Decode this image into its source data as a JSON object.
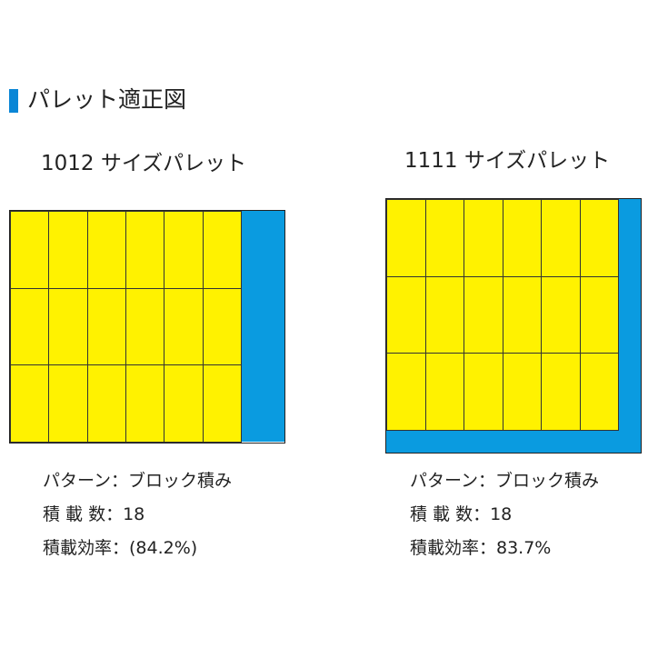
{
  "header": {
    "title": "パレット適正図",
    "accent_color": "#0a86d6"
  },
  "colors": {
    "box": "#fff200",
    "pallet_margin": "#0a9be0"
  },
  "pallets": [
    {
      "title": "1012 サイズパレット",
      "pattern": "パターン：ブロック積み",
      "count": "積 載 数：18",
      "efficiency": "積載効率：(84.2%)",
      "columns": 6,
      "rows": 3
    },
    {
      "title": "1111 サイズパレット",
      "pattern": "パターン：ブロック積み",
      "count": "積 載 数：18",
      "efficiency": "積載効率：83.7%",
      "columns": 6,
      "rows": 3
    }
  ]
}
